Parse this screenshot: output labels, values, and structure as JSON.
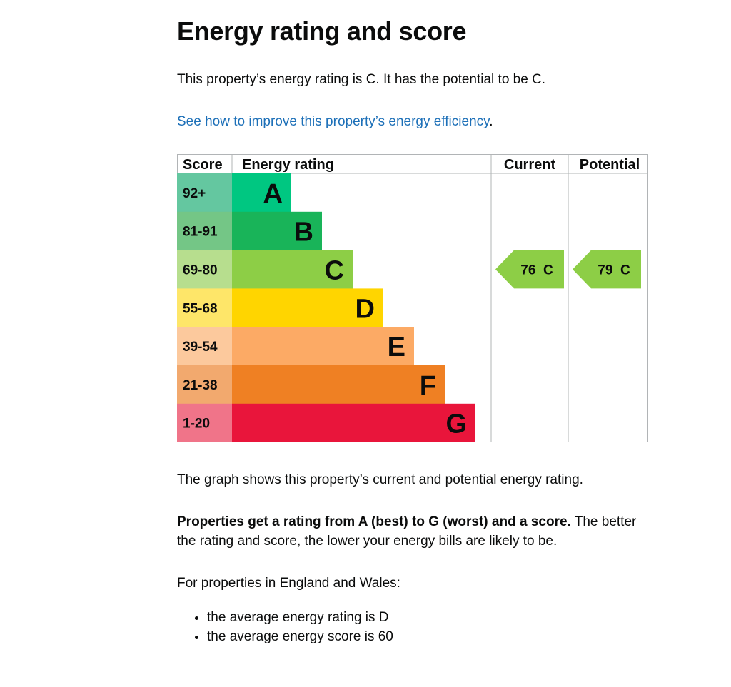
{
  "page": {
    "title": "Energy rating and score",
    "intro": "This property’s energy rating is C. It has the potential to be C.",
    "improve_link": "See how to improve this property’s energy efficiency",
    "improve_link_suffix": ".",
    "graph_caption": "The graph shows this property’s current and potential energy rating.",
    "ratings_bold": "Properties get a rating from A (best) to G (worst) and a score.",
    "ratings_rest": "The better",
    "ratings_line2": "the rating and score, the lower your energy bills are likely to be.",
    "england_wales": "For properties in England and Wales:",
    "averages": [
      "the average energy rating is D",
      "the average energy score is 60"
    ]
  },
  "epc_table": {
    "headers": {
      "score": "Score",
      "rating": "Energy rating",
      "current": "Current",
      "potential": "Potential"
    },
    "bands": [
      {
        "letter": "A",
        "score_range": "92+",
        "color": "#00c781",
        "score_bg": "#64c7a0"
      },
      {
        "letter": "B",
        "score_range": "81-91",
        "color": "#19b459",
        "score_bg": "#74c686"
      },
      {
        "letter": "C",
        "score_range": "69-80",
        "color": "#8dce46",
        "score_bg": "#b7de8e"
      },
      {
        "letter": "D",
        "score_range": "55-68",
        "color": "#ffd500",
        "score_bg": "#fee669"
      },
      {
        "letter": "E",
        "score_range": "39-54",
        "color": "#fcaa65",
        "score_bg": "#fcc99d"
      },
      {
        "letter": "F",
        "score_range": "21-38",
        "color": "#ef8023",
        "score_bg": "#f2a96e"
      },
      {
        "letter": "G",
        "score_range": "1-20",
        "color": "#e9153b",
        "score_bg": "#f07489"
      }
    ],
    "current": {
      "score": 76,
      "letter": "C",
      "label": "76  C",
      "band": "C"
    },
    "potential": {
      "score": 79,
      "letter": "C",
      "label": "79  C",
      "band": "C"
    }
  }
}
